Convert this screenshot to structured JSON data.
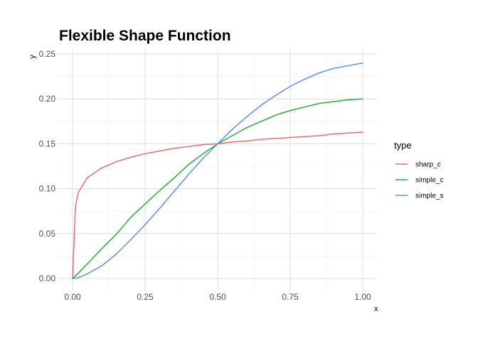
{
  "chart_data": {
    "type": "line",
    "title": "Flexible Shape Function",
    "xlabel": "x",
    "ylabel": "y",
    "xlim": [
      0,
      1
    ],
    "ylim": [
      0,
      0.25
    ],
    "xticks": [
      0,
      0.25,
      0.5,
      0.75,
      1
    ],
    "xtick_labels": [
      "0.00",
      "0.25",
      "0.50",
      "0.75",
      "1.00"
    ],
    "yticks": [
      0,
      0.05,
      0.1,
      0.15,
      0.2,
      0.25
    ],
    "ytick_labels": [
      "0.00",
      "0.05",
      "0.10",
      "0.15",
      "0.20",
      "0.25"
    ],
    "grid": true,
    "legend": {
      "title": "type",
      "position": "right"
    },
    "x": [
      0,
      0.01,
      0.02,
      0.05,
      0.1,
      0.15,
      0.2,
      0.25,
      0.3,
      0.35,
      0.4,
      0.45,
      0.5,
      0.55,
      0.6,
      0.65,
      0.7,
      0.75,
      0.8,
      0.85,
      0.9,
      0.95,
      1.0
    ],
    "series": [
      {
        "name": "sharp_c",
        "color": "#E76F68",
        "values": [
          0,
          0.081,
          0.096,
          0.112,
          0.123,
          0.13,
          0.135,
          0.139,
          0.142,
          0.145,
          0.147,
          0.149,
          0.15,
          0.152,
          0.153,
          0.155,
          0.156,
          0.157,
          0.158,
          0.159,
          0.161,
          0.162,
          0.163
        ]
      },
      {
        "name": "simple_c",
        "color": "#22B03A",
        "values": [
          0,
          0.003,
          0.006,
          0.016,
          0.033,
          0.049,
          0.068,
          0.083,
          0.098,
          0.112,
          0.127,
          0.139,
          0.15,
          0.159,
          0.168,
          0.175,
          0.182,
          0.187,
          0.191,
          0.195,
          0.197,
          0.199,
          0.2
        ]
      },
      {
        "name": "simple_s",
        "color": "#5B8FEF",
        "values": [
          0,
          0.0003,
          0.001,
          0.005,
          0.014,
          0.027,
          0.043,
          0.06,
          0.078,
          0.097,
          0.116,
          0.134,
          0.15,
          0.166,
          0.18,
          0.193,
          0.204,
          0.214,
          0.222,
          0.229,
          0.234,
          0.237,
          0.24
        ]
      }
    ]
  }
}
